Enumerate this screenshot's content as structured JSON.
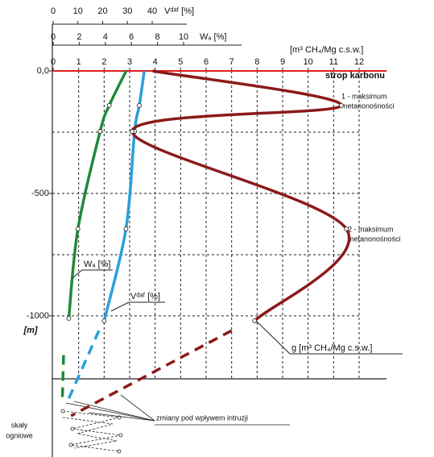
{
  "chart_data": {
    "type": "line",
    "y_title": "[m]",
    "ylim": [
      0,
      -1576
    ],
    "yticks": [
      {
        "value": 0,
        "label": "0,0"
      },
      -500,
      -1000
    ],
    "ygrid": [
      0,
      -250,
      -500,
      -750,
      -1000
    ],
    "axes": [
      {
        "title": "Vᵈᵃᶠ [%]",
        "xlim": [
          0,
          40
        ],
        "xticks": [
          0,
          10,
          20,
          30,
          40
        ]
      },
      {
        "title": "Wₐ [%]",
        "xlim": [
          0,
          10
        ],
        "xticks": [
          0,
          2,
          4,
          6,
          8,
          10
        ]
      },
      {
        "title": "[m³ CH₄/Mg c.s.w.]",
        "xlim": [
          0,
          12
        ],
        "xticks": [
          0,
          1,
          2,
          3,
          4,
          5,
          6,
          7,
          8,
          9,
          10,
          11,
          12
        ],
        "grid": true
      }
    ],
    "roof": {
      "label": "strop karbonu",
      "depth": 0,
      "color": "#e02020"
    },
    "series": [
      {
        "name": "Wₐ [%]",
        "axis": 1,
        "color": "#1f8a3c",
        "depth": [
          0,
          -141,
          -247,
          -645,
          -1010
        ],
        "values": [
          5.6,
          4.3,
          3.6,
          1.9,
          1.2
        ],
        "dashed_depth": [
          -1160,
          -1355
        ],
        "dashed_values": [
          0.8,
          0.7
        ]
      },
      {
        "name": "Vᵈᵃᶠ [%]",
        "axis": 0,
        "color": "#2a9fdc",
        "depth": [
          0,
          -141,
          -247,
          -645,
          -1020
        ],
        "values": [
          36.8,
          34.8,
          32.9,
          29.4,
          20.6
        ],
        "dashed_depth": [
          -1060,
          -1345
        ],
        "dashed_values": [
          18.5,
          6
        ]
      },
      {
        "name": "g [m³ CH₄/Mg c.s.w.]",
        "axis": 2,
        "color": "#8b1a1a",
        "depth": [
          0,
          -141,
          -247,
          -645,
          -1020
        ],
        "values": [
          3.9,
          11.3,
          3.1,
          11.5,
          7.9
        ],
        "dashed_depth": [
          -1060,
          -1408
        ],
        "dashed_values": [
          7.0,
          0.7
        ]
      }
    ],
    "annotations": [
      "1 - maksimum",
      "metanonośności",
      "2 - maksimum",
      "metanonośności",
      "zmiany pod wpływem intruzji",
      "skały",
      "ogniowe"
    ]
  }
}
